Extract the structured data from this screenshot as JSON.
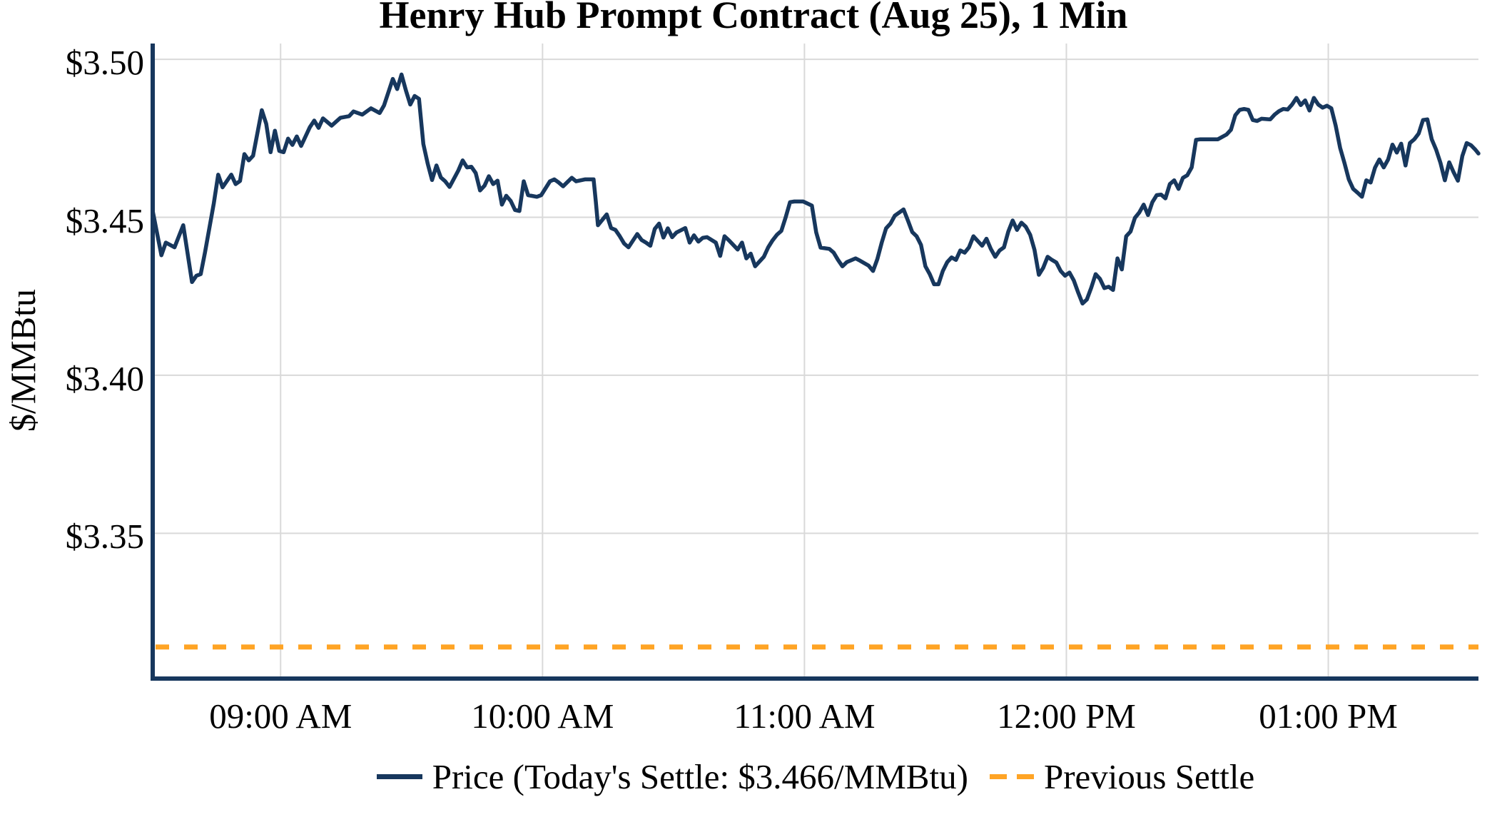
{
  "chart_data": {
    "type": "line",
    "title": "Henry Hub Prompt Contract (Aug 25), 1 Min",
    "ylabel": "$/MMBtu",
    "x_unit": "minutes_after_0830am",
    "xlim": [
      0,
      303.7
    ],
    "ylim": [
      3.304,
      3.505
    ],
    "grid": true,
    "today_settle": 3.466,
    "previous_settle": 3.314,
    "colors": {
      "price_line": "#17375D",
      "previous_settle_line": "#FFA425",
      "gridline": "#D9D9D9",
      "axis": "#17375D",
      "text": "#000000",
      "background": "#FFFFFF"
    },
    "x_ticks": [
      {
        "t": 29.3,
        "label": "09:00 AM"
      },
      {
        "t": 89.3,
        "label": "10:00 AM"
      },
      {
        "t": 149.3,
        "label": "11:00 AM"
      },
      {
        "t": 209.3,
        "label": "12:00 PM"
      },
      {
        "t": 269.3,
        "label": "01:00 PM"
      }
    ],
    "y_ticks": [
      {
        "v": 3.5,
        "label": "$3.50"
      },
      {
        "v": 3.45,
        "label": "$3.45"
      },
      {
        "v": 3.4,
        "label": "$3.40"
      },
      {
        "v": 3.35,
        "label": "$3.35"
      }
    ],
    "legend": [
      {
        "label": "Price (Today's Settle: $3.466/MMBtu)",
        "color": "#17375D",
        "style": "solid"
      },
      {
        "label": "Previous Settle",
        "color": "#FFA425",
        "style": "dashed"
      }
    ],
    "series": [
      {
        "name": "Price",
        "points": [
          [
            0,
            3.452
          ],
          [
            2,
            3.438
          ],
          [
            3,
            3.442
          ],
          [
            5,
            3.4405
          ],
          [
            7,
            3.4475
          ],
          [
            9,
            3.4295
          ],
          [
            10,
            3.4315
          ],
          [
            11,
            3.432
          ],
          [
            12,
            3.439
          ],
          [
            14,
            3.4545
          ],
          [
            15,
            3.4635
          ],
          [
            16,
            3.4595
          ],
          [
            18,
            3.4635
          ],
          [
            19,
            3.4605
          ],
          [
            20,
            3.4615
          ],
          [
            21,
            3.47
          ],
          [
            22,
            3.468
          ],
          [
            23,
            3.4695
          ],
          [
            25,
            3.4839
          ],
          [
            26,
            3.4796
          ],
          [
            27,
            3.4706
          ],
          [
            28,
            3.4774
          ],
          [
            29,
            3.471
          ],
          [
            30,
            3.4706
          ],
          [
            31,
            3.4749
          ],
          [
            32,
            3.4729
          ],
          [
            33,
            3.4756
          ],
          [
            34,
            3.4726
          ],
          [
            36,
            3.4785
          ],
          [
            37,
            3.4806
          ],
          [
            38,
            3.4783
          ],
          [
            39,
            3.4813
          ],
          [
            41,
            3.479
          ],
          [
            43,
            3.4815
          ],
          [
            45,
            3.482
          ],
          [
            46,
            3.4835
          ],
          [
            48,
            3.4825
          ],
          [
            50,
            3.4845
          ],
          [
            52,
            3.483
          ],
          [
            53,
            3.4854
          ],
          [
            55,
            3.4938
          ],
          [
            56,
            3.4906
          ],
          [
            57,
            3.4952
          ],
          [
            58,
            3.4902
          ],
          [
            59,
            3.4857
          ],
          [
            60,
            3.4884
          ],
          [
            61,
            3.4875
          ],
          [
            62,
            3.4732
          ],
          [
            63,
            3.467
          ],
          [
            64,
            3.4618
          ],
          [
            65,
            3.4664
          ],
          [
            66,
            3.4626
          ],
          [
            67,
            3.4614
          ],
          [
            68,
            3.4596
          ],
          [
            70,
            3.4648
          ],
          [
            71,
            3.468
          ],
          [
            72,
            3.4658
          ],
          [
            73,
            3.466
          ],
          [
            74,
            3.464
          ],
          [
            75,
            3.4585
          ],
          [
            76,
            3.46
          ],
          [
            77,
            3.463
          ],
          [
            78,
            3.4605
          ],
          [
            79,
            3.4616
          ],
          [
            80,
            3.454
          ],
          [
            81,
            3.4568
          ],
          [
            82,
            3.4552
          ],
          [
            83,
            3.4523
          ],
          [
            84,
            3.452
          ],
          [
            85,
            3.4614
          ],
          [
            86,
            3.457
          ],
          [
            88,
            3.4565
          ],
          [
            89,
            3.457
          ],
          [
            91,
            3.4614
          ],
          [
            92,
            3.462
          ],
          [
            93,
            3.461
          ],
          [
            94,
            3.4598
          ],
          [
            96,
            3.4625
          ],
          [
            97,
            3.4614
          ],
          [
            99,
            3.462
          ],
          [
            101,
            3.462
          ],
          [
            101.5,
            3.455
          ],
          [
            102,
            3.4475
          ],
          [
            104,
            3.4509
          ],
          [
            105,
            3.4466
          ],
          [
            106,
            3.446
          ],
          [
            107,
            3.444
          ],
          [
            108,
            3.4417
          ],
          [
            109,
            3.4405
          ],
          [
            111,
            3.4447
          ],
          [
            112,
            3.4428
          ],
          [
            113,
            3.442
          ],
          [
            114,
            3.441
          ],
          [
            115,
            3.4463
          ],
          [
            116,
            3.448
          ],
          [
            117,
            3.4436
          ],
          [
            118,
            3.4465
          ],
          [
            119,
            3.4437
          ],
          [
            120,
            3.4452
          ],
          [
            122,
            3.4466
          ],
          [
            123,
            3.442
          ],
          [
            124,
            3.4443
          ],
          [
            125,
            3.4423
          ],
          [
            126,
            3.4435
          ],
          [
            127,
            3.4437
          ],
          [
            129,
            3.442
          ],
          [
            130,
            3.4378
          ],
          [
            131,
            3.444
          ],
          [
            132,
            3.4427
          ],
          [
            134,
            3.4398
          ],
          [
            135,
            3.442
          ],
          [
            136,
            3.437
          ],
          [
            137,
            3.4385
          ],
          [
            138,
            3.4345
          ],
          [
            139,
            3.436
          ],
          [
            140,
            3.4375
          ],
          [
            141,
            3.4405
          ],
          [
            142,
            3.4427
          ],
          [
            143,
            3.4445
          ],
          [
            144,
            3.4457
          ],
          [
            145,
            3.45
          ],
          [
            146,
            3.4548
          ],
          [
            147,
            3.455
          ],
          [
            149,
            3.455
          ],
          [
            151,
            3.4537
          ],
          [
            152,
            3.4452
          ],
          [
            153,
            3.4404
          ],
          [
            155,
            3.44
          ],
          [
            156,
            3.4388
          ],
          [
            157,
            3.4365
          ],
          [
            158,
            3.4345
          ],
          [
            159,
            3.4358
          ],
          [
            161,
            3.437
          ],
          [
            162,
            3.4363
          ],
          [
            164,
            3.4347
          ],
          [
            165,
            3.433
          ],
          [
            166,
            3.4368
          ],
          [
            167,
            3.442
          ],
          [
            168,
            3.4465
          ],
          [
            169,
            3.448
          ],
          [
            170,
            3.4505
          ],
          [
            171,
            3.4515
          ],
          [
            172,
            3.4525
          ],
          [
            173,
            3.449
          ],
          [
            174,
            3.4453
          ],
          [
            175,
            3.444
          ],
          [
            176,
            3.4413
          ],
          [
            177,
            3.4345
          ],
          [
            178,
            3.432
          ],
          [
            179,
            3.4288
          ],
          [
            180,
            3.4288
          ],
          [
            181,
            3.433
          ],
          [
            182,
            3.4358
          ],
          [
            183,
            3.4373
          ],
          [
            184,
            3.4365
          ],
          [
            185,
            3.4395
          ],
          [
            186,
            3.4388
          ],
          [
            187,
            3.4405
          ],
          [
            188,
            3.444
          ],
          [
            189,
            3.4425
          ],
          [
            190,
            3.441
          ],
          [
            191,
            3.4432
          ],
          [
            192,
            3.44
          ],
          [
            193,
            3.4375
          ],
          [
            194,
            3.4395
          ],
          [
            195,
            3.4405
          ],
          [
            196,
            3.4455
          ],
          [
            197,
            3.449
          ],
          [
            198,
            3.446
          ],
          [
            199,
            3.4483
          ],
          [
            200,
            3.447
          ],
          [
            201,
            3.4445
          ],
          [
            202,
            3.4397
          ],
          [
            203,
            3.4318
          ],
          [
            204,
            3.434
          ],
          [
            205,
            3.4375
          ],
          [
            206,
            3.4365
          ],
          [
            207,
            3.4357
          ],
          [
            208,
            3.433
          ],
          [
            209,
            3.4315
          ],
          [
            210,
            3.4325
          ],
          [
            211,
            3.43
          ],
          [
            212,
            3.4262
          ],
          [
            213,
            3.4227
          ],
          [
            214,
            3.424
          ],
          [
            215,
            3.4277
          ],
          [
            216,
            3.432
          ],
          [
            217,
            3.4305
          ],
          [
            218,
            3.4276
          ],
          [
            219,
            3.428
          ],
          [
            220,
            3.427
          ],
          [
            221,
            3.437
          ],
          [
            222,
            3.4335
          ],
          [
            223,
            3.444
          ],
          [
            224,
            3.4455
          ],
          [
            225,
            3.4498
          ],
          [
            226,
            3.4515
          ],
          [
            227,
            3.454
          ],
          [
            228,
            3.4507
          ],
          [
            229,
            3.4548
          ],
          [
            230,
            3.457
          ],
          [
            231,
            3.4572
          ],
          [
            232,
            3.456
          ],
          [
            233,
            3.4605
          ],
          [
            234,
            3.4617
          ],
          [
            235,
            3.459
          ],
          [
            236,
            3.4625
          ],
          [
            237,
            3.4633
          ],
          [
            238,
            3.4658
          ],
          [
            239,
            3.4745
          ],
          [
            240,
            3.4747
          ],
          [
            242,
            3.4747
          ],
          [
            244,
            3.4747
          ],
          [
            246,
            3.4762
          ],
          [
            247,
            3.4777
          ],
          [
            248,
            3.4823
          ],
          [
            249,
            3.484
          ],
          [
            250,
            3.4843
          ],
          [
            251,
            3.484
          ],
          [
            252,
            3.4808
          ],
          [
            253,
            3.4805
          ],
          [
            254,
            3.4812
          ],
          [
            256,
            3.481
          ],
          [
            257,
            3.4825
          ],
          [
            258,
            3.4836
          ],
          [
            259,
            3.4843
          ],
          [
            260,
            3.4841
          ],
          [
            261,
            3.4857
          ],
          [
            262,
            3.4878
          ],
          [
            263,
            3.4855
          ],
          [
            264,
            3.487
          ],
          [
            265,
            3.4838
          ],
          [
            266,
            3.4878
          ],
          [
            267,
            3.4857
          ],
          [
            268,
            3.4847
          ],
          [
            269,
            3.4853
          ],
          [
            270,
            3.4845
          ],
          [
            271,
            3.479
          ],
          [
            272,
            3.472
          ],
          [
            273,
            3.4672
          ],
          [
            274,
            3.462
          ],
          [
            275,
            3.459
          ],
          [
            276,
            3.4578
          ],
          [
            277,
            3.4565
          ],
          [
            278,
            3.4617
          ],
          [
            279,
            3.461
          ],
          [
            280,
            3.4657
          ],
          [
            281,
            3.4683
          ],
          [
            282,
            3.4658
          ],
          [
            283,
            3.4683
          ],
          [
            284,
            3.473
          ],
          [
            285,
            3.4705
          ],
          [
            286,
            3.4733
          ],
          [
            287,
            3.4664
          ],
          [
            288,
            3.4735
          ],
          [
            289,
            3.4747
          ],
          [
            290,
            3.4765
          ],
          [
            291,
            3.4808
          ],
          [
            292,
            3.481
          ],
          [
            293,
            3.4747
          ],
          [
            294,
            3.4714
          ],
          [
            295,
            3.4672
          ],
          [
            296,
            3.4617
          ],
          [
            297,
            3.4674
          ],
          [
            298,
            3.4643
          ],
          [
            299,
            3.4616
          ],
          [
            300,
            3.4694
          ],
          [
            301,
            3.4735
          ],
          [
            302,
            3.4728
          ],
          [
            303,
            3.4714
          ],
          [
            303.7,
            3.4702
          ]
        ]
      }
    ]
  }
}
